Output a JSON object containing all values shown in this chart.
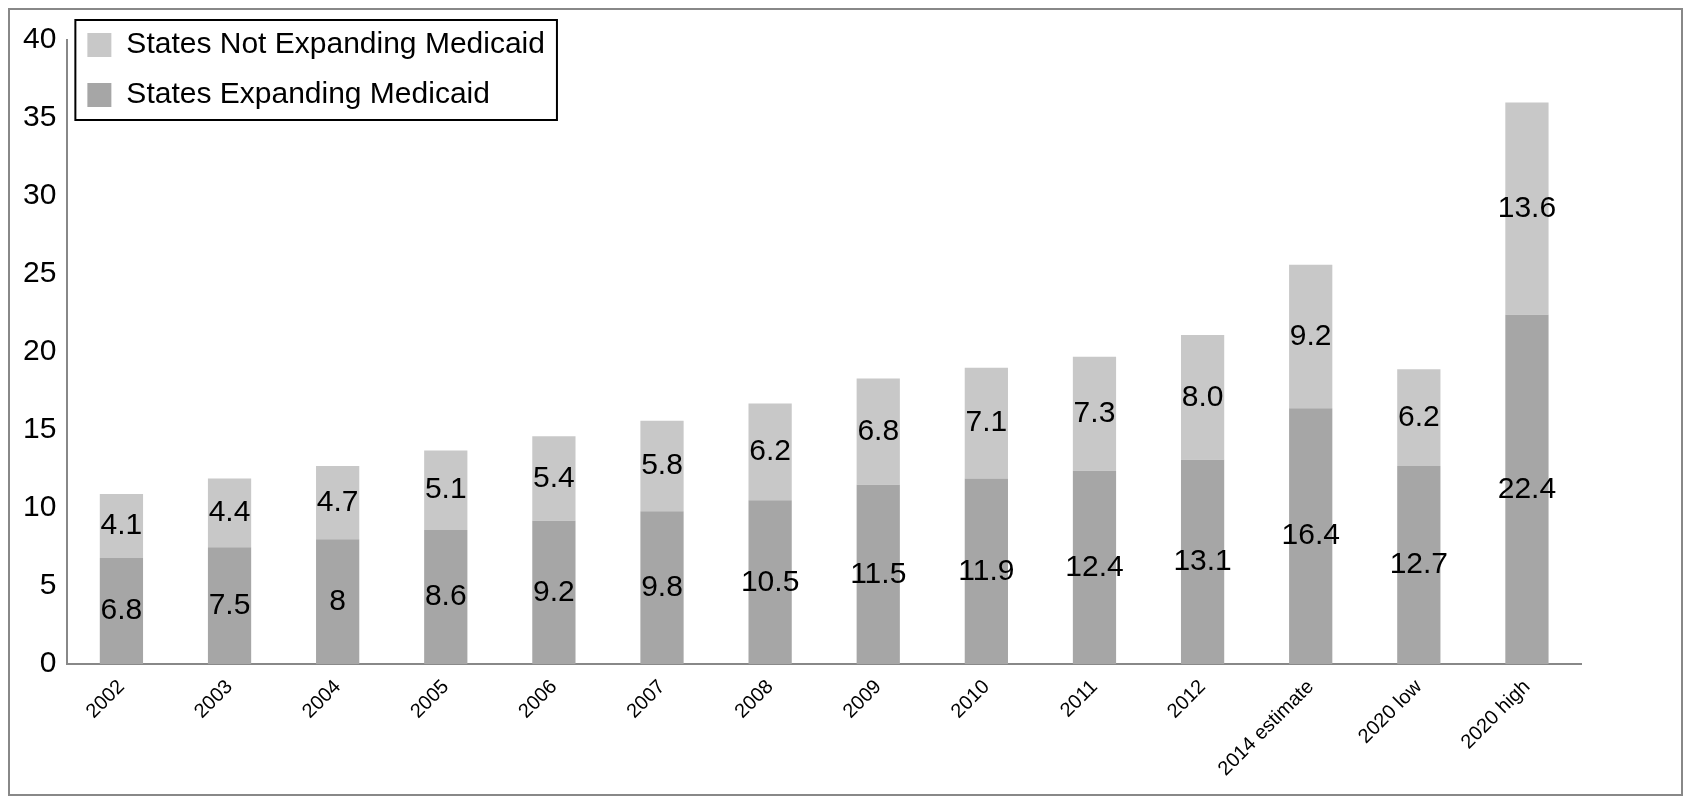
{
  "chart_data": {
    "type": "bar",
    "stacked": true,
    "categories": [
      "2002",
      "2003",
      "2004",
      "2005",
      "2006",
      "2007",
      "2008",
      "2009",
      "2010",
      "2011",
      "2012",
      "2014 estimate",
      "2020 low",
      "2020 high"
    ],
    "series": [
      {
        "name": "States Expanding Medicaid",
        "color": "#a6a6a6",
        "values": [
          6.8,
          7.5,
          8,
          8.6,
          9.2,
          9.8,
          10.5,
          11.5,
          11.9,
          12.4,
          13.1,
          16.4,
          12.7,
          22.4
        ],
        "value_labels": [
          "6.8",
          "7.5",
          "8",
          "8.6",
          "9.2",
          "9.8",
          "10.5",
          "11.5",
          "11.9",
          "12.4",
          "13.1",
          "16.4",
          "12.7",
          "22.4"
        ]
      },
      {
        "name": "States Not Expanding Medicaid",
        "color": "#c8c8c8",
        "values": [
          4.1,
          4.4,
          4.7,
          5.1,
          5.4,
          5.8,
          6.2,
          6.8,
          7.1,
          7.3,
          8.0,
          9.2,
          6.2,
          13.6
        ],
        "value_labels": [
          "4.1",
          "4.4",
          "4.7",
          "5.1",
          "5.4",
          "5.8",
          "6.2",
          "6.8",
          "7.1",
          "7.3",
          "8.0",
          "9.2",
          "6.2",
          "13.6"
        ]
      }
    ],
    "ylim": [
      0,
      40
    ],
    "yticks": [
      0,
      5,
      10,
      15,
      20,
      25,
      30,
      35,
      40
    ],
    "grid": false,
    "legend": "top left"
  }
}
